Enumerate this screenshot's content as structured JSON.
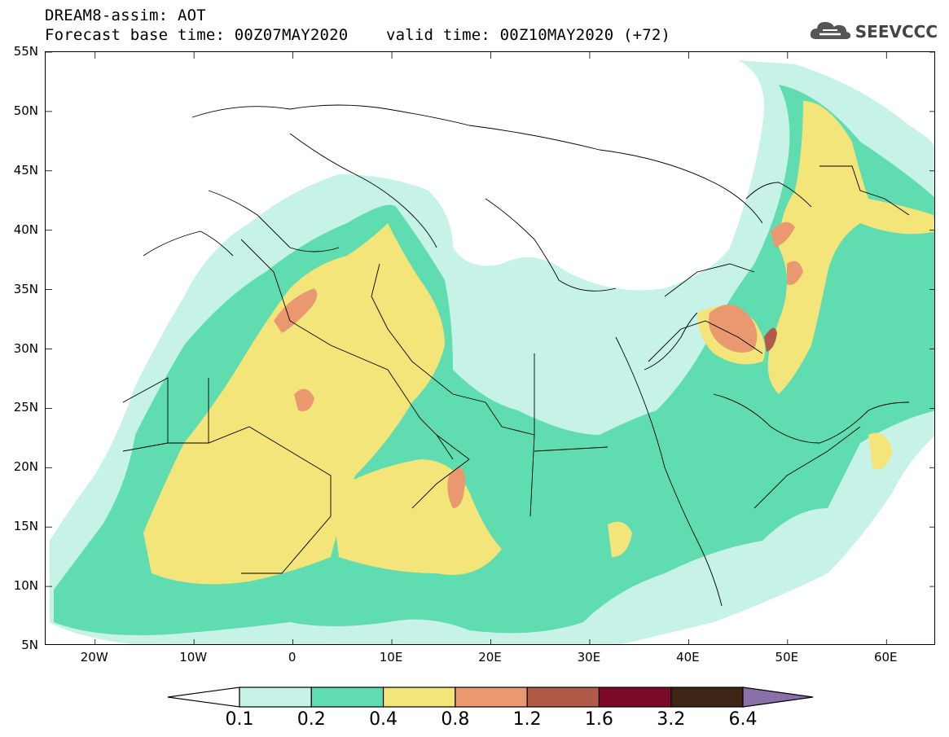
{
  "header": {
    "line1": "DREAM8-assim: AOT",
    "line2": "Forecast base time: 00Z07MAY2020    valid time: 00Z10MAY2020 (+72)"
  },
  "logo": {
    "text": "SEEVCCC",
    "icon": "cloud-icon"
  },
  "map": {
    "lon_range": [
      -25,
      65
    ],
    "lat_range": [
      5,
      55
    ],
    "lat_labels": [
      {
        "lat": 55,
        "label": "55N"
      },
      {
        "lat": 50,
        "label": "50N"
      },
      {
        "lat": 45,
        "label": "45N"
      },
      {
        "lat": 40,
        "label": "40N"
      },
      {
        "lat": 35,
        "label": "35N"
      },
      {
        "lat": 30,
        "label": "30N"
      },
      {
        "lat": 25,
        "label": "25N"
      },
      {
        "lat": 20,
        "label": "20N"
      },
      {
        "lat": 15,
        "label": "15N"
      },
      {
        "lat": 10,
        "label": "10N"
      },
      {
        "lat": 5,
        "label": "5N"
      }
    ],
    "lon_labels": [
      {
        "lon": -20,
        "label": "20W"
      },
      {
        "lon": -10,
        "label": "10W"
      },
      {
        "lon": 0,
        "label": "0"
      },
      {
        "lon": 10,
        "label": "10E"
      },
      {
        "lon": 20,
        "label": "20E"
      },
      {
        "lon": 30,
        "label": "30E"
      },
      {
        "lon": 40,
        "label": "40E"
      },
      {
        "lon": 50,
        "label": "50E"
      },
      {
        "lon": 60,
        "label": "60E"
      }
    ]
  },
  "colorbar": {
    "colors": [
      "#ffffff",
      "#c6f2e8",
      "#5fdcb0",
      "#f3e57a",
      "#ea9870",
      "#b25a48",
      "#7e0a2a",
      "#3d2415",
      "#8a70a8"
    ],
    "labels": [
      "0.1",
      "0.2",
      "0.4",
      "0.8",
      "1.2",
      "1.6",
      "3.2",
      "6.4"
    ]
  }
}
